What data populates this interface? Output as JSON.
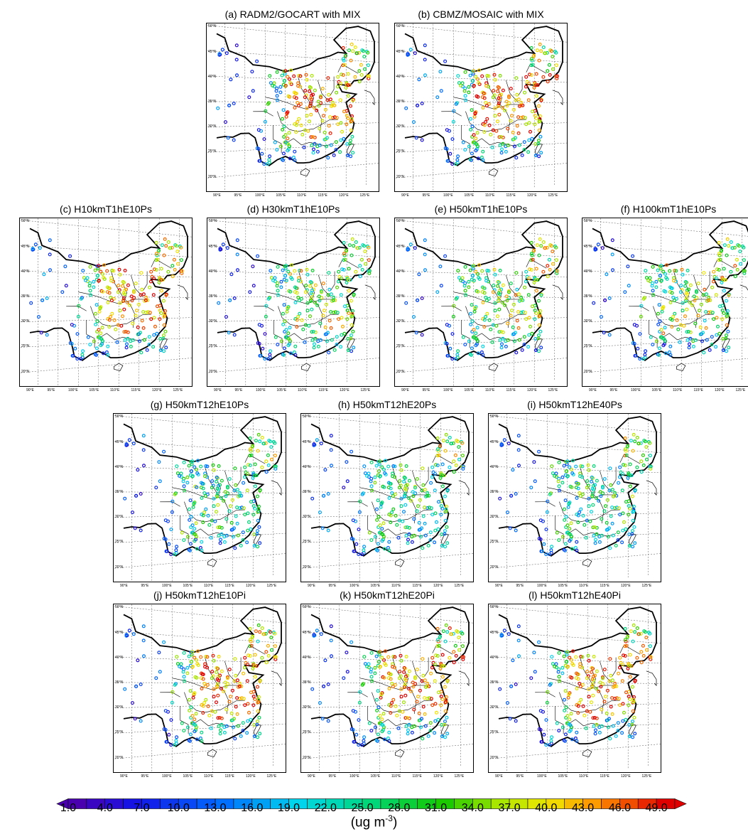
{
  "panels": [
    {
      "id": "a",
      "title": "(a) RADM2/GOCART with MIX",
      "pattern": "high"
    },
    {
      "id": "b",
      "title": "(b) CBMZ/MOSAIC with MIX",
      "pattern": "high"
    },
    {
      "id": "c",
      "title": "(c) H10kmT1hE10Ps",
      "pattern": "high"
    },
    {
      "id": "d",
      "title": "(d) H30kmT1hE10Ps",
      "pattern": "mid"
    },
    {
      "id": "e",
      "title": "(e) H50kmT1hE10Ps",
      "pattern": "mid"
    },
    {
      "id": "f",
      "title": "(f) H100kmT1hE10Ps",
      "pattern": "mid"
    },
    {
      "id": "g",
      "title": "(g) H50kmT12hE10Ps",
      "pattern": "low"
    },
    {
      "id": "h",
      "title": "(h) H50kmT12hE20Ps",
      "pattern": "low"
    },
    {
      "id": "i",
      "title": "(i) H50kmT12hE40Ps",
      "pattern": "low"
    },
    {
      "id": "j",
      "title": "(j) H50kmT12hE10Pi",
      "pattern": "high"
    },
    {
      "id": "k",
      "title": "(k) H50kmT12hE20Pi",
      "pattern": "high"
    },
    {
      "id": "l",
      "title": "(l) H50kmT12hE40Pi",
      "pattern": "high"
    }
  ],
  "lat_labels": [
    "50°N",
    "45°N",
    "40°N",
    "35°N",
    "30°N",
    "25°N",
    "20°N"
  ],
  "lon_labels": [
    "90°E",
    "95°E",
    "100°E",
    "105°E",
    "110°E",
    "115°E",
    "120°E",
    "125°E"
  ],
  "colorbar": {
    "labels": [
      "1.0",
      "4.0",
      "7.0",
      "10.0",
      "13.0",
      "16.0",
      "19.0",
      "22.0",
      "25.0",
      "28.0",
      "31.0",
      "34.0",
      "37.0",
      "40.0",
      "43.0",
      "46.0",
      "49.0"
    ],
    "unit_main": "(ug m",
    "unit_sup": "-3",
    "unit_close": ")",
    "min": 1.0,
    "max": 49.0,
    "step": 1.5
  },
  "colors": {
    "low": "#4b00b0",
    "high": "#e00000"
  }
}
